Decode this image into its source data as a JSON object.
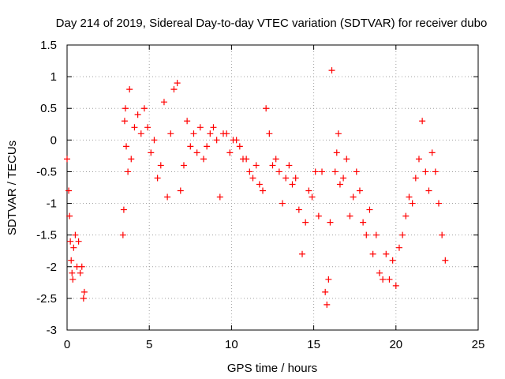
{
  "chart_data": {
    "type": "scatter",
    "title": "Day 214 of 2019, Sidereal Day-to-day VTEC variation (SDTVAR) for receiver dubo",
    "xlabel": "GPS time / hours",
    "ylabel": "SDTVAR / TECUs",
    "xlim": [
      0,
      25
    ],
    "ylim": [
      -3,
      1.5
    ],
    "xticks": [
      0,
      5,
      10,
      15,
      20,
      25
    ],
    "xtick_labels": [
      "0",
      "5",
      "10",
      "15",
      "20",
      "25"
    ],
    "yticks": [
      -3,
      -2.5,
      -2,
      -1.5,
      -1,
      -0.5,
      0,
      0.5,
      1,
      1.5
    ],
    "ytick_labels": [
      "-3",
      "-2.5",
      "-2",
      "-1.5",
      "-1",
      "-0.5",
      "0",
      "0.5",
      "1",
      "1.5"
    ],
    "grid": true,
    "marker": "+",
    "marker_color": "#ff0000",
    "series": [
      {
        "name": "SDTVAR",
        "x": [
          0.0,
          0.1,
          0.15,
          0.2,
          0.25,
          0.3,
          0.35,
          0.4,
          0.5,
          0.6,
          0.7,
          0.8,
          0.9,
          1.0,
          1.05,
          3.4,
          3.45,
          3.5,
          3.55,
          3.6,
          3.7,
          3.8,
          3.9,
          4.1,
          4.3,
          4.5,
          4.7,
          4.9,
          5.1,
          5.3,
          5.5,
          5.7,
          5.9,
          6.1,
          6.3,
          6.5,
          6.7,
          6.9,
          7.1,
          7.3,
          7.5,
          7.7,
          7.9,
          8.1,
          8.3,
          8.5,
          8.7,
          8.9,
          9.1,
          9.3,
          9.5,
          9.7,
          9.9,
          10.1,
          10.3,
          10.5,
          10.7,
          10.9,
          11.1,
          11.3,
          11.5,
          11.7,
          11.9,
          12.1,
          12.3,
          12.5,
          12.7,
          12.9,
          13.1,
          13.3,
          13.5,
          13.7,
          13.9,
          14.1,
          14.3,
          14.5,
          14.7,
          14.9,
          15.1,
          15.3,
          15.5,
          15.7,
          15.8,
          15.9,
          16.0,
          16.1,
          16.3,
          16.4,
          16.5,
          16.6,
          16.8,
          17.0,
          17.2,
          17.4,
          17.6,
          17.8,
          18.0,
          18.2,
          18.4,
          18.6,
          18.8,
          19.0,
          19.2,
          19.4,
          19.6,
          19.8,
          20.0,
          20.2,
          20.4,
          20.6,
          20.8,
          21.0,
          21.2,
          21.4,
          21.6,
          21.8,
          22.0,
          22.2,
          22.4,
          22.6,
          22.8,
          23.0
        ],
        "y": [
          -0.3,
          -0.8,
          -1.2,
          -1.6,
          -1.9,
          -2.1,
          -2.2,
          -1.7,
          -1.5,
          -2.0,
          -1.6,
          -2.1,
          -2.0,
          -2.5,
          -2.4,
          -1.5,
          -1.1,
          0.3,
          0.5,
          -0.1,
          -0.5,
          0.8,
          -0.3,
          0.2,
          0.4,
          0.1,
          0.5,
          0.2,
          -0.2,
          0.0,
          -0.6,
          -0.4,
          0.6,
          -0.9,
          0.1,
          0.8,
          0.9,
          -0.8,
          -0.4,
          0.3,
          -0.1,
          0.1,
          -0.2,
          0.2,
          -0.3,
          -0.1,
          0.1,
          0.2,
          0.0,
          -0.9,
          0.1,
          0.1,
          -0.2,
          0.0,
          0.0,
          -0.1,
          -0.3,
          -0.3,
          -0.5,
          -0.6,
          -0.4,
          -0.7,
          -0.8,
          0.5,
          0.1,
          -0.4,
          -0.3,
          -0.5,
          -1.0,
          -0.6,
          -0.4,
          -0.7,
          -0.6,
          -1.1,
          -1.8,
          -1.3,
          -0.8,
          -0.9,
          -0.5,
          -1.2,
          -0.5,
          -2.4,
          -2.6,
          -2.2,
          -1.3,
          1.1,
          -0.5,
          -0.2,
          0.1,
          -0.7,
          -0.6,
          -0.3,
          -1.2,
          -0.9,
          -0.5,
          -0.8,
          -1.3,
          -1.5,
          -1.1,
          -1.8,
          -1.5,
          -2.1,
          -2.2,
          -1.8,
          -2.2,
          -1.9,
          -2.3,
          -1.7,
          -1.5,
          -1.2,
          -0.9,
          -1.0,
          -0.6,
          -0.3,
          0.3,
          -0.5,
          -0.8,
          -0.2,
          -0.5,
          -1.0,
          -1.5,
          -1.9
        ]
      }
    ]
  }
}
